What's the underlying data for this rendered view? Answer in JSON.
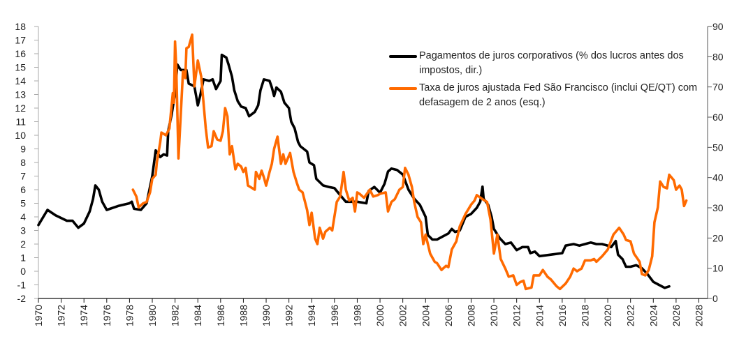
{
  "chart_data": {
    "type": "line",
    "title": "",
    "xlabel": "",
    "ylabel_left": "",
    "ylabel_right": "",
    "x_range": [
      1970,
      2028
    ],
    "x_ticks": [
      "1970",
      "1972",
      "1974",
      "1976",
      "1978",
      "1980",
      "1982",
      "1984",
      "1986",
      "1988",
      "1990",
      "1992",
      "1994",
      "1996",
      "1998",
      "2000",
      "2002",
      "2004",
      "2006",
      "2008",
      "2010",
      "2012",
      "2014",
      "2016",
      "2018",
      "2020",
      "2022",
      "2024",
      "2026",
      "2028"
    ],
    "y_left_range": [
      -2,
      18
    ],
    "y_left_ticks": [
      "18",
      "17",
      "16",
      "15",
      "14",
      "13",
      "12",
      "11",
      "10",
      "9",
      "8",
      "7",
      "6",
      "5",
      "4",
      "3",
      "2",
      "1",
      "0",
      "-1",
      "-2"
    ],
    "y_right_range": [
      0,
      90
    ],
    "y_right_ticks": [
      "90",
      "80",
      "70",
      "60",
      "50",
      "40",
      "30",
      "20",
      "10",
      "0"
    ],
    "grid": false,
    "legend_position": "top-right",
    "series": [
      {
        "name": "Pagamentos de juros corporativos (% dos lucros antes dos impostos, dir.)",
        "axis": "right",
        "color": "#000000",
        "points": [
          [
            1970,
            24.3
          ],
          [
            1970.8,
            29.3
          ],
          [
            1971.5,
            27.5
          ],
          [
            1972.5,
            25.7
          ],
          [
            1973,
            25.7
          ],
          [
            1973.5,
            23.4
          ],
          [
            1974,
            24.8
          ],
          [
            1974.5,
            28.8
          ],
          [
            1974.8,
            32.9
          ],
          [
            1975,
            37.4
          ],
          [
            1975.3,
            36
          ],
          [
            1975.6,
            32
          ],
          [
            1976,
            29.3
          ],
          [
            1977,
            30.6
          ],
          [
            1978,
            31.5
          ],
          [
            1978.2,
            32
          ],
          [
            1978.4,
            29.7
          ],
          [
            1979,
            29.3
          ],
          [
            1979.5,
            31.5
          ],
          [
            1980,
            40.5
          ],
          [
            1980.3,
            49
          ],
          [
            1980.7,
            46.8
          ],
          [
            1981,
            47.7
          ],
          [
            1981.3,
            47.3
          ],
          [
            1981.4,
            55.4
          ],
          [
            1981.7,
            60.8
          ],
          [
            1982,
            68
          ],
          [
            1982.2,
            77.4
          ],
          [
            1982.5,
            75.6
          ],
          [
            1983,
            75.6
          ],
          [
            1983.2,
            71.1
          ],
          [
            1983.7,
            70.2
          ],
          [
            1984,
            63.9
          ],
          [
            1984.2,
            67
          ],
          [
            1984.5,
            72.5
          ],
          [
            1985,
            72
          ],
          [
            1985.3,
            72.5
          ],
          [
            1985.6,
            69.3
          ],
          [
            1986,
            72
          ],
          [
            1986.1,
            80.6
          ],
          [
            1986.5,
            79.7
          ],
          [
            1986.7,
            77.4
          ],
          [
            1987,
            73.4
          ],
          [
            1987.2,
            68.9
          ],
          [
            1987.5,
            65.3
          ],
          [
            1987.8,
            63.5
          ],
          [
            1988.2,
            63
          ],
          [
            1988.5,
            60.3
          ],
          [
            1989,
            61.7
          ],
          [
            1989.3,
            63.9
          ],
          [
            1989.5,
            68.9
          ],
          [
            1989.8,
            72.5
          ],
          [
            1990.3,
            72
          ],
          [
            1990.5,
            69.8
          ],
          [
            1990.7,
            67
          ],
          [
            1990.9,
            69.8
          ],
          [
            1991.3,
            68.4
          ],
          [
            1991.6,
            64.8
          ],
          [
            1992,
            63
          ],
          [
            1992.2,
            58.5
          ],
          [
            1992.5,
            56.3
          ],
          [
            1992.8,
            51.8
          ],
          [
            1993,
            50.4
          ],
          [
            1993.6,
            48.6
          ],
          [
            1993.8,
            45
          ],
          [
            1994.2,
            44.1
          ],
          [
            1994.4,
            39.6
          ],
          [
            1995,
            37.4
          ],
          [
            1995.5,
            36.9
          ],
          [
            1996,
            36.5
          ],
          [
            1996.5,
            34.2
          ],
          [
            1997,
            32
          ],
          [
            1998,
            32
          ],
          [
            1998.8,
            31.5
          ],
          [
            1999,
            35.6
          ],
          [
            1999.5,
            36.9
          ],
          [
            2000,
            35
          ],
          [
            2000.4,
            38
          ],
          [
            2000.7,
            42
          ],
          [
            2001,
            43
          ],
          [
            2001.5,
            42.5
          ],
          [
            2002,
            41
          ],
          [
            2002.5,
            36
          ],
          [
            2003,
            33
          ],
          [
            2003.5,
            31
          ],
          [
            2004,
            27
          ],
          [
            2004.2,
            21
          ],
          [
            2004.6,
            19.5
          ],
          [
            2005,
            19.5
          ],
          [
            2005.5,
            20.5
          ],
          [
            2006,
            21.5
          ],
          [
            2006.3,
            23
          ],
          [
            2006.6,
            22
          ],
          [
            2007,
            22.5
          ],
          [
            2007.5,
            27
          ],
          [
            2008,
            28
          ],
          [
            2008.5,
            30
          ],
          [
            2008.8,
            32
          ],
          [
            2009,
            37
          ],
          [
            2009.1,
            33
          ],
          [
            2009.5,
            31
          ],
          [
            2009.8,
            27
          ],
          [
            2010,
            23
          ],
          [
            2010.5,
            20
          ],
          [
            2011,
            18
          ],
          [
            2011.5,
            18.5
          ],
          [
            2012,
            16
          ],
          [
            2012.5,
            17
          ],
          [
            2013,
            17
          ],
          [
            2013.2,
            15
          ],
          [
            2013.6,
            15.5
          ],
          [
            2014,
            14
          ],
          [
            2015,
            14.5
          ],
          [
            2016,
            15
          ],
          [
            2016.3,
            17.5
          ],
          [
            2017,
            18
          ],
          [
            2017.5,
            17.5
          ],
          [
            2018,
            18
          ],
          [
            2018.5,
            18.5
          ],
          [
            2019,
            18
          ],
          [
            2019.5,
            18
          ],
          [
            2020,
            17.5
          ],
          [
            2020.3,
            17
          ],
          [
            2020.7,
            19
          ],
          [
            2020.9,
            14.5
          ],
          [
            2021.3,
            13
          ],
          [
            2021.6,
            10.5
          ],
          [
            2022,
            10.5
          ],
          [
            2022.5,
            11
          ],
          [
            2023,
            10
          ],
          [
            2023.5,
            8
          ],
          [
            2024,
            5.5
          ],
          [
            2024.5,
            4.5
          ],
          [
            2025,
            3.5
          ],
          [
            2025.4,
            4
          ]
        ]
      },
      {
        "name": "Taxa de juros ajustada Fed São Francisco (inclui QE/QT) com defasagem de 2 anos (esq.)",
        "axis": "left",
        "color": "#ff6a00",
        "points": [
          [
            1978.3,
            6.0
          ],
          [
            1978.6,
            5.5
          ],
          [
            1978.8,
            4.7
          ],
          [
            1979.2,
            5.0
          ],
          [
            1979.5,
            5.1
          ],
          [
            1979.8,
            5.8
          ],
          [
            1980,
            6.8
          ],
          [
            1980.3,
            7.1
          ],
          [
            1980.4,
            8.0
          ],
          [
            1980.7,
            9.5
          ],
          [
            1980.8,
            10.2
          ],
          [
            1981.2,
            10.0
          ],
          [
            1981.5,
            10.5
          ],
          [
            1981.8,
            13.1
          ],
          [
            1981.9,
            12.4
          ],
          [
            1982,
            16.9
          ],
          [
            1982.1,
            15
          ],
          [
            1982.3,
            8.3
          ],
          [
            1982.7,
            14.7
          ],
          [
            1982.9,
            14.2
          ],
          [
            1983.0,
            16.4
          ],
          [
            1983.2,
            16.5
          ],
          [
            1983.5,
            17.4
          ],
          [
            1983.7,
            13.6
          ],
          [
            1984.0,
            15.5
          ],
          [
            1984.3,
            14.3
          ],
          [
            1984.7,
            10.5
          ],
          [
            1984.9,
            9.1
          ],
          [
            1985.2,
            9.2
          ],
          [
            1985.4,
            10.3
          ],
          [
            1985.7,
            9.7
          ],
          [
            1986.0,
            9.6
          ],
          [
            1986.2,
            10.3
          ],
          [
            1986.4,
            12.0
          ],
          [
            1986.6,
            11.4
          ],
          [
            1986.8,
            8.6
          ],
          [
            1987.0,
            9.2
          ],
          [
            1987.3,
            7.5
          ],
          [
            1987.5,
            7.9
          ],
          [
            1987.8,
            7.7
          ],
          [
            1988,
            7.3
          ],
          [
            1988.2,
            7.6
          ],
          [
            1988.4,
            6.3
          ],
          [
            1989.0,
            6.0
          ],
          [
            1989.1,
            7.3
          ],
          [
            1989.4,
            6.8
          ],
          [
            1989.6,
            7.4
          ],
          [
            1989.8,
            6.9
          ],
          [
            1990,
            6.3
          ],
          [
            1990.3,
            7.3
          ],
          [
            1990.5,
            7.9
          ],
          [
            1990.7,
            9.0
          ],
          [
            1991,
            9.9
          ],
          [
            1991.3,
            7.9
          ],
          [
            1991.5,
            8.6
          ],
          [
            1991.7,
            7.9
          ],
          [
            1992.1,
            8.7
          ],
          [
            1992.4,
            7.3
          ],
          [
            1992.7,
            6.5
          ],
          [
            1992.9,
            6.0
          ],
          [
            1993.2,
            5.8
          ],
          [
            1993.6,
            4.5
          ],
          [
            1993.8,
            3.4
          ],
          [
            1994,
            4.3
          ],
          [
            1994.3,
            2.4
          ],
          [
            1994.5,
            2.0
          ],
          [
            1994.7,
            3.2
          ],
          [
            1995.0,
            2.4
          ],
          [
            1995.2,
            2.9
          ],
          [
            1995.6,
            3.2
          ],
          [
            1995.8,
            3.0
          ],
          [
            1996.2,
            5.1
          ],
          [
            1996.5,
            5.5
          ],
          [
            1996.8,
            7.3
          ],
          [
            1997.0,
            6.0
          ],
          [
            1997.3,
            5.2
          ],
          [
            1997.6,
            5.4
          ],
          [
            1997.8,
            4.4
          ],
          [
            1998.0,
            5.8
          ],
          [
            1998.2,
            5.7
          ],
          [
            1998.6,
            5.4
          ],
          [
            1999.1,
            6.0
          ],
          [
            1999.4,
            5.5
          ],
          [
            1999.8,
            5.6
          ],
          [
            2000,
            5.7
          ],
          [
            2000.5,
            5.8
          ],
          [
            2000.7,
            4.4
          ],
          [
            2001,
            5.1
          ],
          [
            2001.3,
            5.3
          ],
          [
            2001.7,
            6.0
          ],
          [
            2002,
            6.2
          ],
          [
            2002.2,
            7.6
          ],
          [
            2002.5,
            7.1
          ],
          [
            2002.8,
            6.2
          ],
          [
            2003,
            5.1
          ],
          [
            2003.3,
            4.0
          ],
          [
            2003.6,
            3.6
          ],
          [
            2003.8,
            2.0
          ],
          [
            2004,
            2.7
          ],
          [
            2004.4,
            1.3
          ],
          [
            2004.8,
            0.7
          ],
          [
            2005,
            0.6
          ],
          [
            2005.4,
            0.1
          ],
          [
            2005.8,
            0.4
          ],
          [
            2006,
            0.3
          ],
          [
            2006.3,
            1.6
          ],
          [
            2006.7,
            2.2
          ],
          [
            2007,
            3.3
          ],
          [
            2007.5,
            4.2
          ],
          [
            2008,
            4.9
          ],
          [
            2008.3,
            5.2
          ],
          [
            2008.5,
            5.6
          ],
          [
            2009,
            5.3
          ],
          [
            2009.4,
            5.1
          ],
          [
            2009.7,
            3.8
          ],
          [
            2010,
            1.3
          ],
          [
            2010.3,
            2.7
          ],
          [
            2010.6,
            0.9
          ],
          [
            2011,
            0.2
          ],
          [
            2011.3,
            -0.4
          ],
          [
            2011.7,
            -0.3
          ],
          [
            2012,
            -1.0
          ],
          [
            2012.3,
            -0.8
          ],
          [
            2012.6,
            -0.7
          ],
          [
            2012.8,
            -1.3
          ],
          [
            2013.3,
            -1.2
          ],
          [
            2013.5,
            -0.3
          ],
          [
            2014,
            -0.3
          ],
          [
            2014.3,
            0.1
          ],
          [
            2014.7,
            -0.4
          ],
          [
            2015,
            -0.6
          ],
          [
            2015.5,
            -1.1
          ],
          [
            2015.8,
            -1.3
          ],
          [
            2016.3,
            -0.9
          ],
          [
            2016.7,
            -0.4
          ],
          [
            2017,
            0.2
          ],
          [
            2017.3,
            0.0
          ],
          [
            2017.7,
            0.2
          ],
          [
            2018,
            0.8
          ],
          [
            2018.5,
            0.8
          ],
          [
            2018.8,
            0.9
          ],
          [
            2019,
            0.7
          ],
          [
            2019.5,
            1.1
          ],
          [
            2020,
            1.6
          ],
          [
            2020.5,
            2.7
          ],
          [
            2021,
            3.2
          ],
          [
            2021.4,
            2.7
          ],
          [
            2021.6,
            2.3
          ],
          [
            2022,
            2.2
          ],
          [
            2022.3,
            1.3
          ],
          [
            2022.8,
            0.7
          ],
          [
            2023,
            -0.2
          ],
          [
            2023.3,
            -0.3
          ],
          [
            2023.6,
            0.1
          ],
          [
            2023.9,
            1.1
          ],
          [
            2024.1,
            3.6
          ],
          [
            2024.4,
            4.7
          ],
          [
            2024.6,
            6.6
          ],
          [
            2024.9,
            6.2
          ],
          [
            2025.2,
            6.1
          ],
          [
            2025.4,
            7.1
          ],
          [
            2025.8,
            6.7
          ],
          [
            2026,
            6.0
          ],
          [
            2026.3,
            6.3
          ],
          [
            2026.5,
            6.0
          ],
          [
            2026.7,
            4.8
          ],
          [
            2026.9,
            5.2
          ]
        ]
      }
    ]
  }
}
